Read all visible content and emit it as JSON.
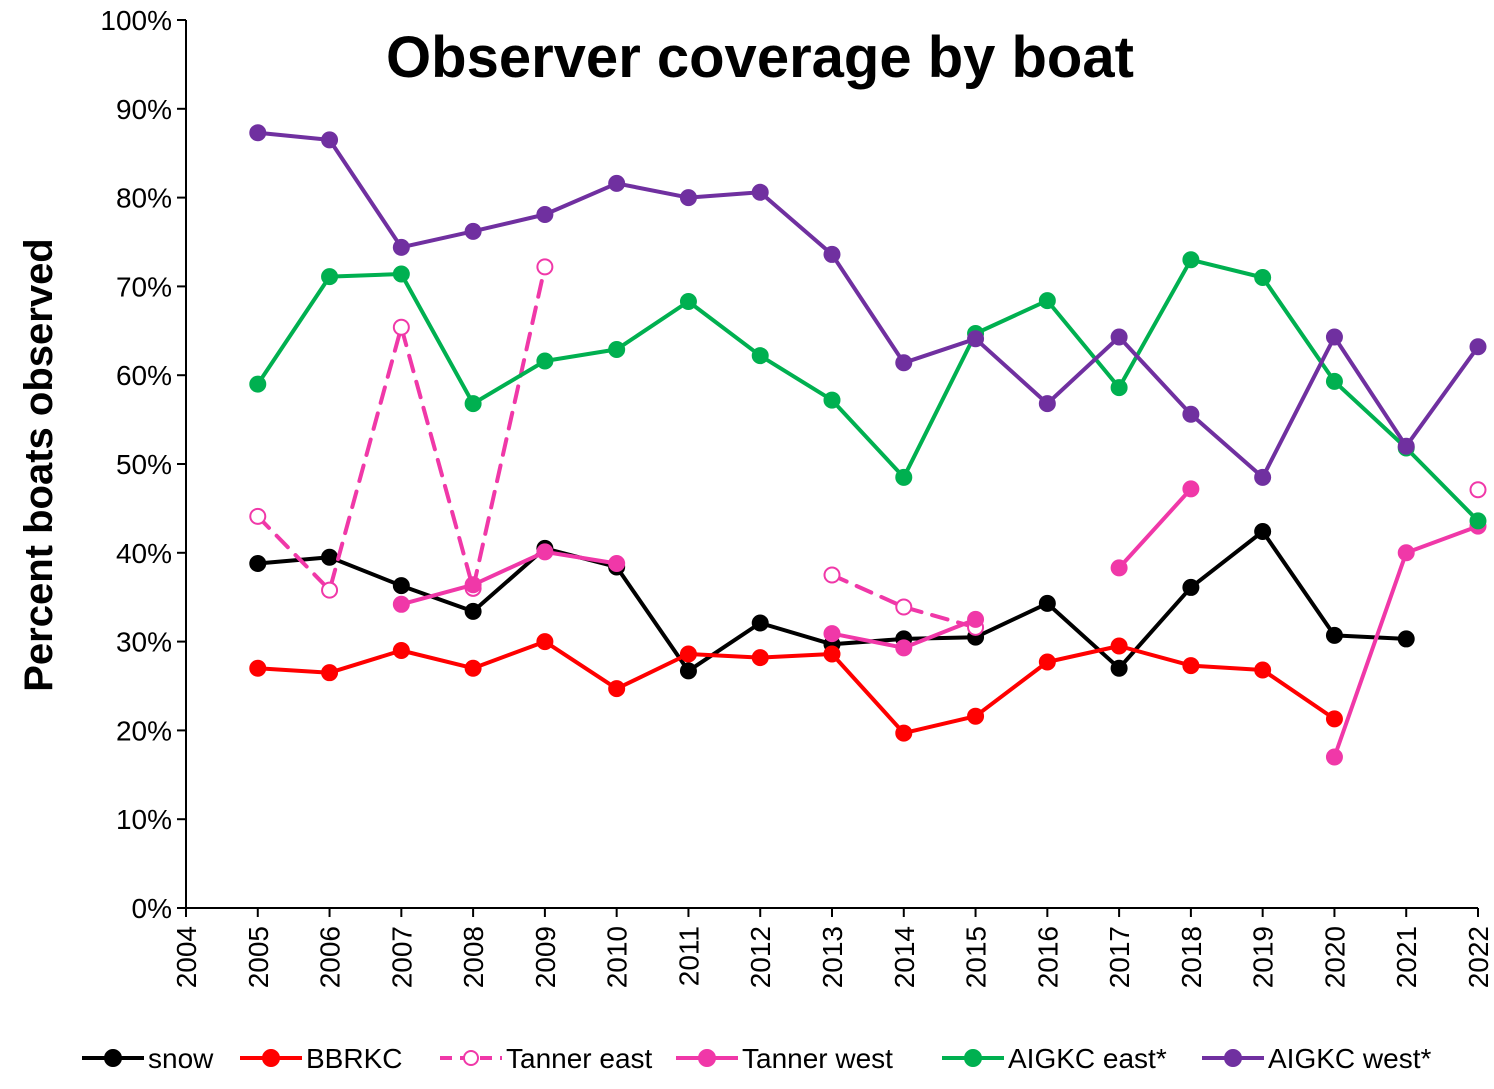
{
  "chart_data": {
    "type": "line",
    "title": "Observer coverage by boat",
    "xlabel": "",
    "ylabel": "Percent boats observed",
    "xlim": [
      2004,
      2022
    ],
    "ylim": [
      0,
      100
    ],
    "y_ticks": [
      "0%",
      "10%",
      "20%",
      "30%",
      "40%",
      "50%",
      "60%",
      "70%",
      "80%",
      "90%",
      "100%"
    ],
    "x_ticks": [
      "2004",
      "2005",
      "2006",
      "2007",
      "2008",
      "2009",
      "2010",
      "2011",
      "2012",
      "2013",
      "2014",
      "2015",
      "2016",
      "2017",
      "2018",
      "2019",
      "2020",
      "2021",
      "2022"
    ],
    "grid": false,
    "legend_position": "bottom",
    "series": [
      {
        "name": "snow",
        "color": "#000000",
        "marker": "filled-circle",
        "line": "solid",
        "x": [
          2005,
          2006,
          2007,
          2008,
          2009,
          2010,
          2011,
          2012,
          2013,
          2014,
          2015,
          2016,
          2017,
          2018,
          2019,
          2020,
          2021
        ],
        "values": [
          38.8,
          39.5,
          36.3,
          33.4,
          40.5,
          38.4,
          26.7,
          32.1,
          29.7,
          30.3,
          30.5,
          34.3,
          27.0,
          36.1,
          42.4,
          30.7,
          30.3
        ]
      },
      {
        "name": "BBRKC",
        "color": "#ff0000",
        "marker": "filled-circle",
        "line": "solid",
        "x": [
          2005,
          2006,
          2007,
          2008,
          2009,
          2010,
          2011,
          2012,
          2013,
          2014,
          2015,
          2016,
          2017,
          2018,
          2019,
          2020
        ],
        "values": [
          27.0,
          26.5,
          29.0,
          27.0,
          30.0,
          24.7,
          28.6,
          28.2,
          28.6,
          19.7,
          21.6,
          27.7,
          29.5,
          27.3,
          26.8,
          21.3
        ]
      },
      {
        "name": "Tanner east",
        "color": "#f038a8",
        "marker": "open-circle",
        "line": "dashed",
        "x": [
          2005,
          2006,
          2007,
          2008,
          2009,
          2013,
          2014,
          2015,
          2022
        ],
        "values": [
          44.1,
          35.8,
          65.4,
          36.0,
          72.2,
          37.5,
          33.9,
          31.6,
          47.1
        ],
        "segments": [
          [
            0,
            4
          ],
          [
            5,
            7
          ],
          [
            8,
            8
          ]
        ]
      },
      {
        "name": "Tanner west",
        "color": "#f038a8",
        "marker": "filled-circle",
        "line": "solid",
        "x": [
          2007,
          2008,
          2009,
          2010,
          2013,
          2014,
          2015,
          2017,
          2018,
          2020,
          2021,
          2022
        ],
        "values": [
          34.2,
          36.4,
          40.1,
          38.8,
          30.9,
          29.3,
          32.5,
          38.3,
          47.2,
          17.0,
          40.0,
          43.0
        ],
        "segments": [
          [
            0,
            3
          ],
          [
            4,
            6
          ],
          [
            7,
            8
          ],
          [
            9,
            11
          ]
        ]
      },
      {
        "name": "AIGKC east*",
        "color": "#00b050",
        "marker": "filled-circle",
        "line": "solid",
        "x": [
          2005,
          2006,
          2007,
          2008,
          2009,
          2010,
          2011,
          2012,
          2013,
          2014,
          2015,
          2016,
          2017,
          2018,
          2019,
          2020,
          2021,
          2022
        ],
        "values": [
          59.0,
          71.1,
          71.4,
          56.8,
          61.6,
          62.9,
          68.3,
          62.2,
          57.2,
          48.5,
          64.7,
          68.4,
          58.6,
          73.0,
          71.0,
          59.3,
          51.8,
          43.6
        ]
      },
      {
        "name": "AIGKC west*",
        "color": "#7030a0",
        "marker": "filled-circle",
        "line": "solid",
        "x": [
          2005,
          2006,
          2007,
          2008,
          2009,
          2010,
          2011,
          2012,
          2013,
          2014,
          2015,
          2016,
          2017,
          2018,
          2019,
          2020,
          2021,
          2022
        ],
        "values": [
          87.3,
          86.5,
          74.4,
          76.2,
          78.1,
          81.6,
          80.0,
          80.6,
          73.6,
          61.4,
          64.1,
          56.8,
          64.3,
          55.6,
          48.5,
          64.3,
          52.0,
          63.2
        ]
      }
    ]
  }
}
